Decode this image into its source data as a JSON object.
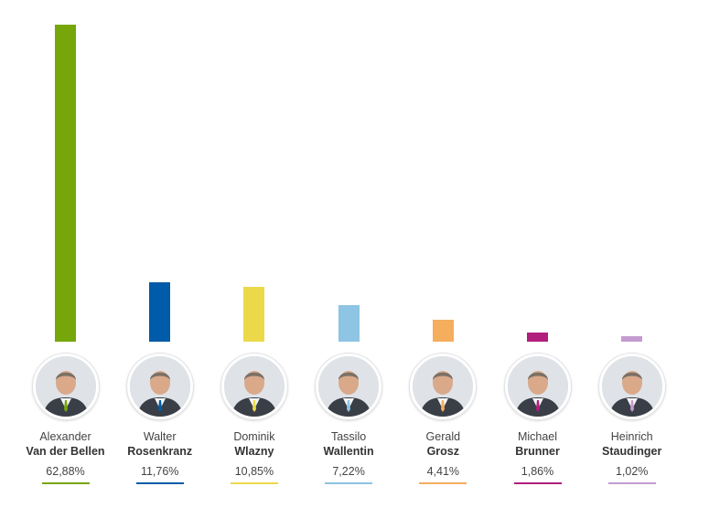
{
  "chart_data": {
    "type": "bar",
    "categories": [
      "Alexander Van der Bellen",
      "Walter Rosenkranz",
      "Dominik Wlazny",
      "Tassilo Wallentin",
      "Gerald Grosz",
      "Michael Brunner",
      "Heinrich Staudinger"
    ],
    "values": [
      62.88,
      11.76,
      10.85,
      7.22,
      4.41,
      1.86,
      1.02
    ],
    "value_labels": [
      "62,88%",
      "11,76%",
      "10,85%",
      "7,22%",
      "4,41%",
      "1,86%",
      "1,02%"
    ],
    "title": "",
    "xlabel": "",
    "ylabel": "",
    "ylim": [
      0,
      62.88
    ],
    "grid": false,
    "legend": "none"
  },
  "candidates": [
    {
      "first": "Alexander",
      "last": "Van der Bellen",
      "color": "#76a60a",
      "photo": "person-portrait"
    },
    {
      "first": "Walter",
      "last": "Rosenkranz",
      "color": "#005ba8",
      "photo": "person-portrait"
    },
    {
      "first": "Dominik",
      "last": "Wlazny",
      "color": "#ecd94a",
      "photo": "person-portrait"
    },
    {
      "first": "Tassilo",
      "last": "Wallentin",
      "color": "#8ec4e4",
      "photo": "person-portrait"
    },
    {
      "first": "Gerald",
      "last": "Grosz",
      "color": "#f5ad5e",
      "photo": "person-portrait"
    },
    {
      "first": "Michael",
      "last": "Brunner",
      "color": "#b21e7c",
      "photo": "person-portrait"
    },
    {
      "first": "Heinrich",
      "last": "Staudinger",
      "color": "#c49bd0",
      "photo": "person-portrait"
    }
  ]
}
